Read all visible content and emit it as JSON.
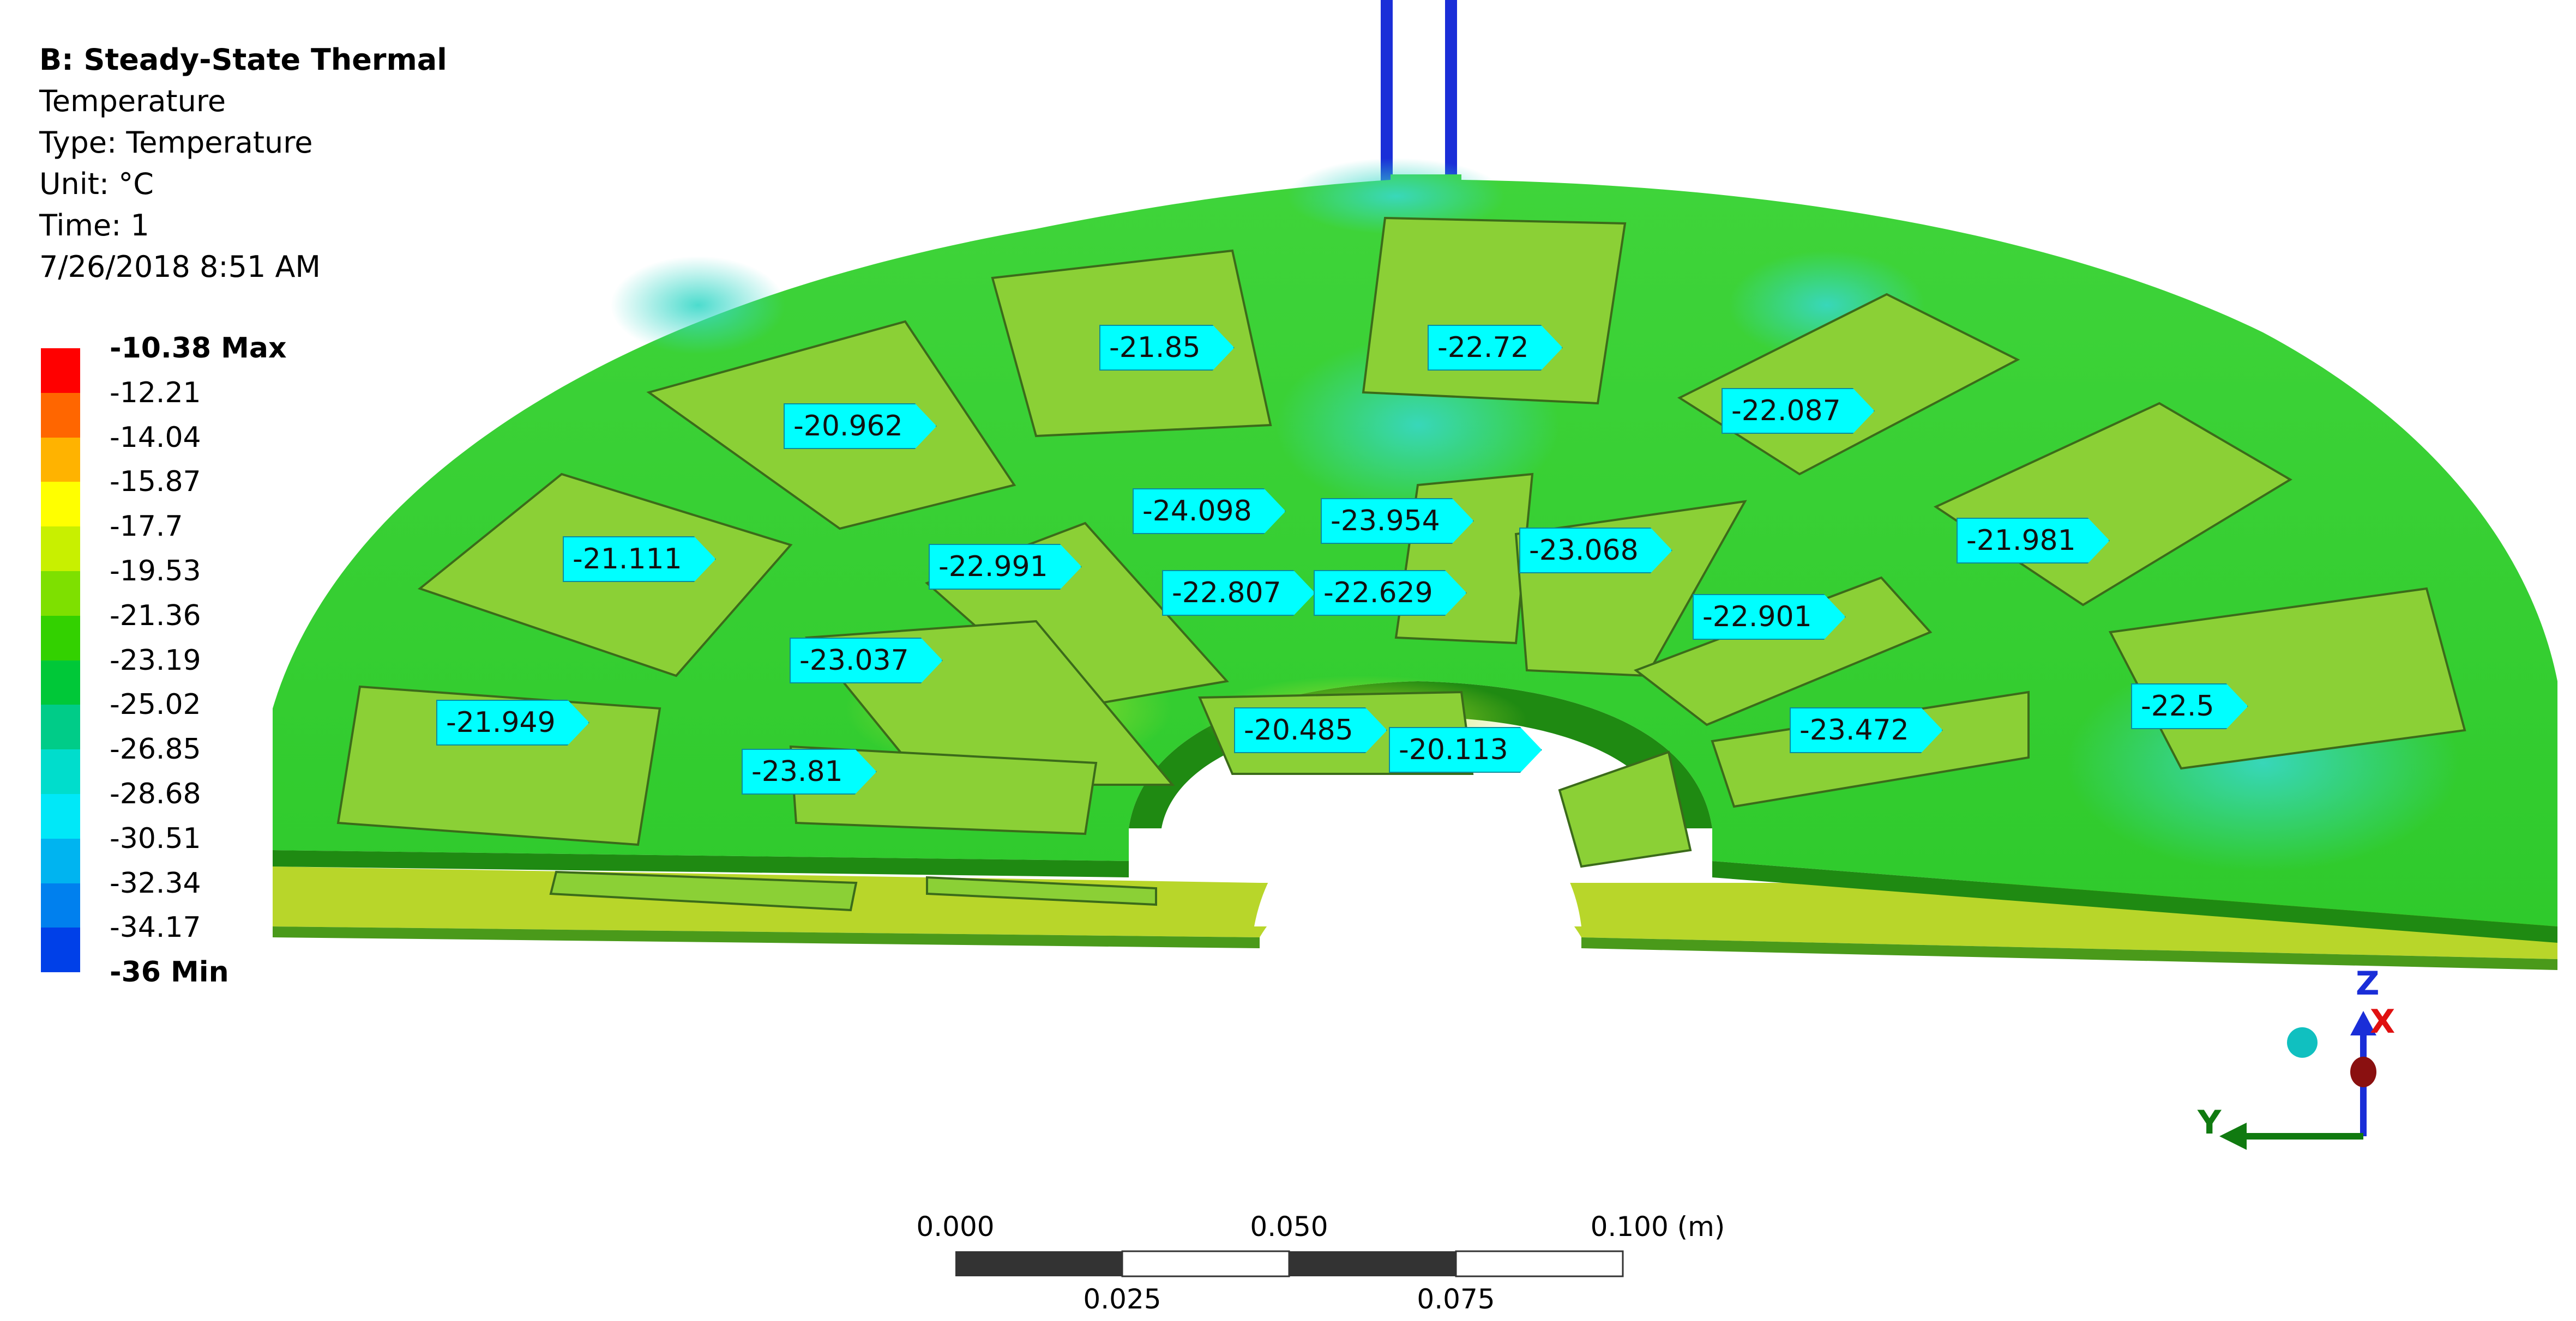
{
  "header": {
    "analysis": "B: Steady-State Thermal",
    "result": "Temperature",
    "type": "Type: Temperature",
    "unit": "Unit: °C",
    "time": "Time: 1",
    "date": "7/26/2018 8:51 AM"
  },
  "legend": {
    "labels": [
      "-10.38 Max",
      "-12.21",
      "-14.04",
      "-15.87",
      "-17.7",
      "-19.53",
      "-21.36",
      "-23.19",
      "-25.02",
      "-26.85",
      "-28.68",
      "-30.51",
      "-32.34",
      "-34.17",
      "-36 Min"
    ],
    "colors": [
      "#ff0000",
      "#ff6600",
      "#ffb300",
      "#ffff00",
      "#c8f000",
      "#7ee000",
      "#33d100",
      "#00c838",
      "#00cc88",
      "#00ddcc",
      "#00e8f8",
      "#00b4f0",
      "#0080ee",
      "#0040e8",
      "#0000e0"
    ]
  },
  "probes": [
    "-21.85",
    "-22.72",
    "-20.962",
    "-22.087",
    "-24.098",
    "-23.954",
    "-21.111",
    "-22.991",
    "-23.068",
    "-21.981",
    "-22.807",
    "-22.629",
    "-22.901",
    "-23.037",
    "-21.949",
    "-20.485",
    "-20.113",
    "-23.472",
    "-22.5",
    "-23.81"
  ],
  "scale": {
    "top_labels": [
      "0.000",
      "0.050",
      "0.100 (m)"
    ],
    "bottom_labels": [
      "0.025",
      "0.075"
    ]
  },
  "triad": {
    "z": "Z",
    "x": "X",
    "y": "Y"
  },
  "colors": {
    "model_green": "#33d100",
    "model_dark": "#1f8a12",
    "lower_layer": "#b8d62a",
    "pads": "#8bd036",
    "pipe": "#1a2ed8",
    "probe_fill": "#00ffff"
  }
}
